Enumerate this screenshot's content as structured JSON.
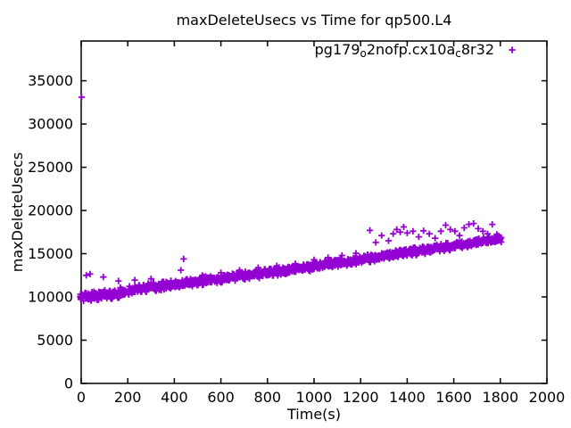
{
  "chart_data": {
    "type": "scatter",
    "title": "maxDeleteUsecs vs Time for qp500.L4",
    "xlabel": "Time(s)",
    "ylabel": "maxDeleteUsecs",
    "xlim": [
      0,
      2000
    ],
    "ylim": [
      0,
      39600
    ],
    "xticks": [
      0,
      200,
      400,
      600,
      800,
      1000,
      1200,
      1400,
      1600,
      1800,
      2000
    ],
    "yticks": [
      0,
      5000,
      10000,
      15000,
      20000,
      25000,
      30000,
      35000
    ],
    "grid": false,
    "tick_style": "inward-mirrored",
    "legend": {
      "position": "inside-top-right",
      "marker": "plus",
      "label_text": "pg179o2nofp.cx10ac8r32",
      "label_parts": [
        {
          "text": "pg179",
          "sub": false
        },
        {
          "text": "o",
          "sub": true
        },
        {
          "text": "2nofp.cx10a",
          "sub": false
        },
        {
          "text": "c",
          "sub": true
        },
        {
          "text": "8r32",
          "sub": false
        }
      ]
    },
    "series": [
      {
        "name": "pg179_o2nofp.cx10a_c8r32",
        "color": "#9400d3",
        "marker": "plus",
        "trend": "dense band rising roughly linearly from ~10000 usecs at t=0 to ~16700 usecs at t=1800, plus one extreme outlier ~33100 at t=0 and high outliers 17000-18500 between t=1240 and t=1800",
        "band_points": [
          [
            0,
            9950
          ],
          [
            10,
            9900
          ],
          [
            20,
            10150
          ],
          [
            30,
            10050
          ],
          [
            40,
            9800
          ],
          [
            50,
            10250
          ],
          [
            60,
            10100
          ],
          [
            70,
            9950
          ],
          [
            80,
            10300
          ],
          [
            90,
            10150
          ],
          [
            100,
            10400
          ],
          [
            110,
            10200
          ],
          [
            120,
            10350
          ],
          [
            130,
            10150
          ],
          [
            140,
            10600
          ],
          [
            150,
            10400
          ],
          [
            160,
            10250
          ],
          [
            170,
            10700
          ],
          [
            180,
            10500
          ],
          [
            190,
            10650
          ],
          [
            200,
            10600
          ],
          [
            210,
            10850
          ],
          [
            220,
            10650
          ],
          [
            230,
            10950
          ],
          [
            240,
            10800
          ],
          [
            250,
            11050
          ],
          [
            260,
            10750
          ],
          [
            270,
            11100
          ],
          [
            280,
            10900
          ],
          [
            290,
            11200
          ],
          [
            300,
            11000
          ],
          [
            310,
            11250
          ],
          [
            320,
            11050
          ],
          [
            330,
            11300
          ],
          [
            340,
            11150
          ],
          [
            350,
            11400
          ],
          [
            360,
            11200
          ],
          [
            370,
            11450
          ],
          [
            380,
            11250
          ],
          [
            390,
            11500
          ],
          [
            400,
            11350
          ],
          [
            410,
            11600
          ],
          [
            420,
            11400
          ],
          [
            430,
            11650
          ],
          [
            440,
            11500
          ],
          [
            450,
            11700
          ],
          [
            460,
            11550
          ],
          [
            470,
            11750
          ],
          [
            480,
            11600
          ],
          [
            490,
            11800
          ],
          [
            500,
            11700
          ],
          [
            510,
            11900
          ],
          [
            520,
            11750
          ],
          [
            530,
            12000
          ],
          [
            540,
            11850
          ],
          [
            550,
            12050
          ],
          [
            560,
            11900
          ],
          [
            570,
            12100
          ],
          [
            580,
            11950
          ],
          [
            590,
            12150
          ],
          [
            600,
            12050
          ],
          [
            610,
            12250
          ],
          [
            620,
            12100
          ],
          [
            630,
            12300
          ],
          [
            640,
            12150
          ],
          [
            650,
            12400
          ],
          [
            660,
            12250
          ],
          [
            670,
            12450
          ],
          [
            680,
            12300
          ],
          [
            690,
            12500
          ],
          [
            700,
            12400
          ],
          [
            710,
            12600
          ],
          [
            720,
            12450
          ],
          [
            730,
            12650
          ],
          [
            740,
            12500
          ],
          [
            750,
            12700
          ],
          [
            760,
            12550
          ],
          [
            770,
            12750
          ],
          [
            780,
            12650
          ],
          [
            790,
            12850
          ],
          [
            800,
            12750
          ],
          [
            810,
            12950
          ],
          [
            820,
            12800
          ],
          [
            830,
            13000
          ],
          [
            840,
            12850
          ],
          [
            850,
            13050
          ],
          [
            860,
            12950
          ],
          [
            870,
            13100
          ],
          [
            880,
            13000
          ],
          [
            890,
            13200
          ],
          [
            900,
            13100
          ],
          [
            910,
            13300
          ],
          [
            920,
            13150
          ],
          [
            930,
            13350
          ],
          [
            940,
            13200
          ],
          [
            950,
            13400
          ],
          [
            960,
            13300
          ],
          [
            970,
            13500
          ],
          [
            980,
            13350
          ],
          [
            990,
            13550
          ],
          [
            1000,
            13500
          ],
          [
            1010,
            13650
          ],
          [
            1020,
            13550
          ],
          [
            1030,
            13750
          ],
          [
            1040,
            13600
          ],
          [
            1050,
            13800
          ],
          [
            1060,
            13700
          ],
          [
            1070,
            13900
          ],
          [
            1080,
            13750
          ],
          [
            1090,
            13950
          ],
          [
            1100,
            13900
          ],
          [
            1110,
            14050
          ],
          [
            1120,
            13950
          ],
          [
            1130,
            14150
          ],
          [
            1140,
            14000
          ],
          [
            1150,
            14200
          ],
          [
            1160,
            14100
          ],
          [
            1170,
            14300
          ],
          [
            1180,
            14150
          ],
          [
            1190,
            14350
          ],
          [
            1200,
            14300
          ],
          [
            1210,
            14450
          ],
          [
            1220,
            14350
          ],
          [
            1230,
            14550
          ],
          [
            1240,
            14400
          ],
          [
            1250,
            14600
          ],
          [
            1260,
            14500
          ],
          [
            1270,
            14700
          ],
          [
            1280,
            14550
          ],
          [
            1290,
            14750
          ],
          [
            1300,
            14700
          ],
          [
            1310,
            14850
          ],
          [
            1320,
            14750
          ],
          [
            1330,
            14950
          ],
          [
            1340,
            14800
          ],
          [
            1350,
            15000
          ],
          [
            1360,
            14900
          ],
          [
            1370,
            15100
          ],
          [
            1380,
            14950
          ],
          [
            1390,
            15150
          ],
          [
            1400,
            15100
          ],
          [
            1410,
            15250
          ],
          [
            1420,
            15150
          ],
          [
            1430,
            15350
          ],
          [
            1440,
            15200
          ],
          [
            1450,
            15400
          ],
          [
            1460,
            15300
          ],
          [
            1470,
            15500
          ],
          [
            1480,
            15350
          ],
          [
            1490,
            15550
          ],
          [
            1500,
            15500
          ],
          [
            1510,
            15650
          ],
          [
            1520,
            15550
          ],
          [
            1530,
            15750
          ],
          [
            1540,
            15600
          ],
          [
            1550,
            15800
          ],
          [
            1560,
            15700
          ],
          [
            1570,
            15900
          ],
          [
            1580,
            15750
          ],
          [
            1590,
            15950
          ],
          [
            1600,
            15900
          ],
          [
            1610,
            16050
          ],
          [
            1620,
            15950
          ],
          [
            1630,
            16150
          ],
          [
            1640,
            16000
          ],
          [
            1650,
            16200
          ],
          [
            1660,
            16100
          ],
          [
            1670,
            16300
          ],
          [
            1680,
            16150
          ],
          [
            1690,
            16350
          ],
          [
            1700,
            16300
          ],
          [
            1710,
            16450
          ],
          [
            1720,
            16350
          ],
          [
            1730,
            16550
          ],
          [
            1740,
            16400
          ],
          [
            1750,
            16600
          ],
          [
            1760,
            16500
          ],
          [
            1770,
            16700
          ],
          [
            1780,
            16550
          ],
          [
            1790,
            16750
          ],
          [
            1800,
            16650
          ]
        ],
        "outliers": [
          [
            2,
            33100
          ],
          [
            22,
            12500
          ],
          [
            38,
            12650
          ],
          [
            95,
            12300
          ],
          [
            160,
            11850
          ],
          [
            230,
            11950
          ],
          [
            300,
            12100
          ],
          [
            428,
            13100
          ],
          [
            440,
            14400
          ],
          [
            520,
            12500
          ],
          [
            600,
            12800
          ],
          [
            680,
            13100
          ],
          [
            760,
            13400
          ],
          [
            840,
            13600
          ],
          [
            920,
            13850
          ],
          [
            1000,
            14300
          ],
          [
            1060,
            14550
          ],
          [
            1120,
            14800
          ],
          [
            1180,
            15050
          ],
          [
            1240,
            17700
          ],
          [
            1265,
            16300
          ],
          [
            1290,
            17100
          ],
          [
            1320,
            16500
          ],
          [
            1340,
            17300
          ],
          [
            1355,
            17800
          ],
          [
            1370,
            17500
          ],
          [
            1385,
            18100
          ],
          [
            1400,
            17400
          ],
          [
            1425,
            17600
          ],
          [
            1450,
            16950
          ],
          [
            1470,
            17650
          ],
          [
            1495,
            17300
          ],
          [
            1520,
            16800
          ],
          [
            1545,
            17600
          ],
          [
            1565,
            18300
          ],
          [
            1585,
            17800
          ],
          [
            1605,
            17600
          ],
          [
            1625,
            17100
          ],
          [
            1645,
            18000
          ],
          [
            1665,
            18400
          ],
          [
            1685,
            18500
          ],
          [
            1705,
            17900
          ],
          [
            1725,
            17600
          ],
          [
            1745,
            17300
          ],
          [
            1765,
            18400
          ],
          [
            1785,
            17250
          ]
        ]
      }
    ],
    "colors": {
      "series": "#9400d3",
      "axis": "#000000",
      "text": "#000000",
      "background": "#ffffff"
    }
  }
}
